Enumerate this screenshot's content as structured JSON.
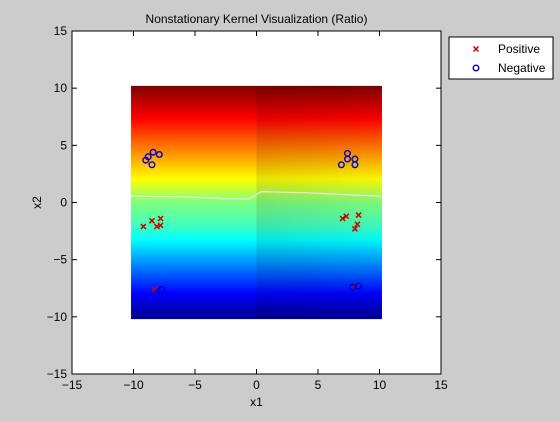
{
  "chart_data": {
    "type": "scatter",
    "title": "Nonstationary Kernel Visualization (Ratio)",
    "xlabel": "x1",
    "ylabel": "x2",
    "xlim": [
      -15,
      15
    ],
    "ylim": [
      -15,
      15
    ],
    "xticks": [
      -15,
      -10,
      -5,
      0,
      5,
      10,
      15
    ],
    "yticks": [
      -15,
      -10,
      -5,
      0,
      5,
      10,
      15
    ],
    "xtick_labels": [
      "−15",
      "−10",
      "−5",
      "0",
      "5",
      "10",
      "15"
    ],
    "ytick_labels": [
      "−15",
      "−10",
      "−5",
      "0",
      "5",
      "10",
      "15"
    ],
    "grid": false,
    "legend_position": "outside top-right",
    "heatmap": {
      "colormap": "jet",
      "x_range": [
        -10.2,
        10.2
      ],
      "y_range": [
        -10.2,
        10.2
      ],
      "contour_color": "#e8e8e8",
      "contour": [
        {
          "x": -10.2,
          "y": 0.55
        },
        {
          "x": -6,
          "y": 0.5
        },
        {
          "x": -3,
          "y": 0.35
        },
        {
          "x": -0.6,
          "y": 0.3
        },
        {
          "x": 0.4,
          "y": 0.95
        },
        {
          "x": 4,
          "y": 0.85
        },
        {
          "x": 7,
          "y": 0.7
        },
        {
          "x": 10.2,
          "y": 0.55
        }
      ]
    },
    "series": [
      {
        "name": "Positive",
        "marker": "x",
        "color": "#cc0000",
        "points": [
          {
            "x": -9.2,
            "y": -2.1
          },
          {
            "x": -8.5,
            "y": -1.6
          },
          {
            "x": -8.1,
            "y": -2.1
          },
          {
            "x": -7.8,
            "y": -1.4
          },
          {
            "x": -7.8,
            "y": -2.0
          },
          {
            "x": -8.2,
            "y": 8.3
          },
          {
            "x": -8.3,
            "y": -7.6
          },
          {
            "x": 7.0,
            "y": -1.4
          },
          {
            "x": 7.3,
            "y": -1.2
          },
          {
            "x": 8.0,
            "y": -2.3
          },
          {
            "x": 8.3,
            "y": -1.1
          },
          {
            "x": 8.2,
            "y": -1.9
          },
          {
            "x": 8.2,
            "y": 8.4
          },
          {
            "x": 8.0,
            "y": -7.3
          }
        ]
      },
      {
        "name": "Negative",
        "marker": "o",
        "color": "#0000cc",
        "points": [
          {
            "x": -8.8,
            "y": 4.0
          },
          {
            "x": -8.4,
            "y": 4.4
          },
          {
            "x": -9.0,
            "y": 3.7
          },
          {
            "x": -8.5,
            "y": 3.3
          },
          {
            "x": -7.9,
            "y": 4.2
          },
          {
            "x": -8.1,
            "y": -8.0
          },
          {
            "x": -7.7,
            "y": -7.6
          },
          {
            "x": 6.9,
            "y": 3.3
          },
          {
            "x": 7.4,
            "y": 4.3
          },
          {
            "x": 7.4,
            "y": 3.8
          },
          {
            "x": 8.0,
            "y": 3.8
          },
          {
            "x": 8.0,
            "y": 3.3
          },
          {
            "x": 7.8,
            "y": -7.4
          },
          {
            "x": 8.3,
            "y": -7.3
          }
        ]
      }
    ]
  }
}
